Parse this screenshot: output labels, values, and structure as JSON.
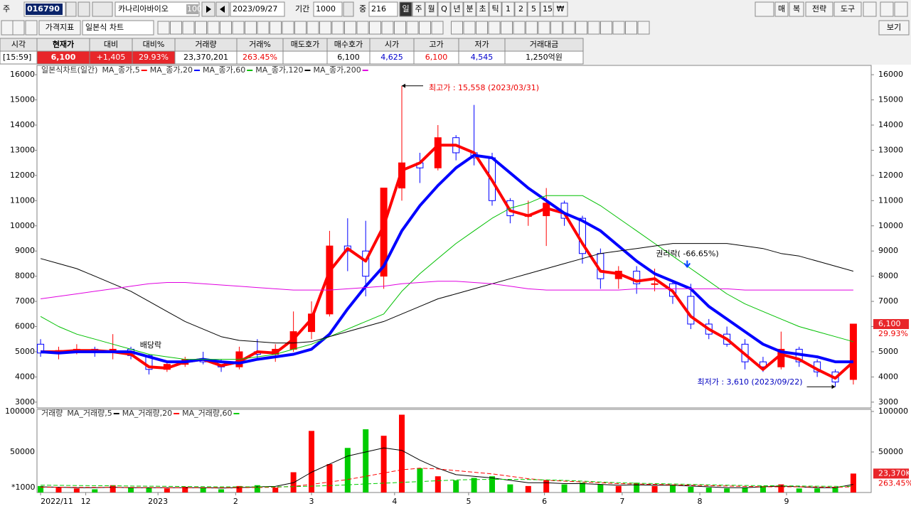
{
  "toolbar": {
    "prefix": "주",
    "code": "016790",
    "name": "카나리아바이오",
    "name_badge": "100",
    "date": "2023/09/27",
    "period_label": "기간",
    "period": "1000",
    "zoom_label": "중",
    "zoom": "216",
    "intervals": [
      "일",
      "주",
      "월",
      "Q",
      "년",
      "분",
      "초",
      "틱",
      "1",
      "2",
      "5",
      "15",
      "₩"
    ],
    "right_buttons": [
      "매",
      "복",
      "전략",
      "도구"
    ]
  },
  "toolbar2": {
    "indicator": "가격지표",
    "chart_type": "일본식 차트",
    "view": "보기"
  },
  "quote": [
    {
      "label": "시각",
      "value": "[15:59]"
    },
    {
      "label": "현재가",
      "value": "6,100"
    },
    {
      "label": "대비",
      "value": "+1,405"
    },
    {
      "label": "대비%",
      "value": "29.93%"
    },
    {
      "label": "거래량",
      "value": "23,370,201"
    },
    {
      "label": "거래%",
      "value": "263.45%"
    },
    {
      "label": "매도호가"
    },
    {
      "label": "매수호가",
      "value": "6,100"
    },
    {
      "label": "시가",
      "value": "4,625"
    },
    {
      "label": "고가",
      "value": "6,100"
    },
    {
      "label": "저가",
      "value": "4,545"
    },
    {
      "label": "거래대금",
      "value": "1,250억원"
    }
  ],
  "chart_data": [
    {
      "type": "candlestick",
      "title": "일본식차트(일간)",
      "up_color": "#ff0000",
      "down_color": "#0000ff",
      "open": [
        5300,
        4950,
        5050,
        5100,
        5000,
        5100,
        4850,
        4300,
        4500,
        4700,
        4600,
        4400,
        5000,
        4900,
        5100,
        5800,
        6500,
        9200,
        9000,
        8000,
        11500,
        12500,
        12300,
        13500,
        12900,
        12700,
        11000,
        10400,
        10400,
        10900,
        10300,
        8900,
        7900,
        8200,
        7700,
        7700,
        7200,
        6100,
        5700,
        5300,
        4600,
        4400,
        5100,
        4600,
        4200,
        3900
      ],
      "high": [
        5500,
        5200,
        5300,
        5200,
        5700,
        5200,
        4900,
        4600,
        4800,
        5000,
        4700,
        5200,
        5500,
        5300,
        6600,
        7000,
        9800,
        10300,
        10200,
        11500,
        15558,
        12900,
        14000,
        13600,
        14800,
        12900,
        11100,
        11000,
        11500,
        11000,
        10400,
        9100,
        8400,
        8400,
        8300,
        7800,
        7700,
        6300,
        6000,
        5500,
        4800,
        5800,
        5200,
        4700,
        4300,
        6100
      ],
      "low": [
        4800,
        4700,
        4900,
        4800,
        4700,
        4700,
        4100,
        4200,
        4400,
        4500,
        4200,
        4300,
        4700,
        4600,
        5000,
        5500,
        6400,
        8200,
        7200,
        7500,
        11000,
        11700,
        12200,
        12600,
        12400,
        10800,
        10100,
        10000,
        9200,
        10000,
        8500,
        7500,
        7500,
        7300,
        7400,
        6900,
        5900,
        5500,
        5200,
        4300,
        4200,
        4300,
        4400,
        4000,
        3610,
        3700
      ],
      "close": [
        4950,
        5050,
        5100,
        5000,
        5100,
        4850,
        4300,
        4500,
        4700,
        4600,
        4400,
        5000,
        4900,
        5100,
        5800,
        6500,
        9200,
        9000,
        8000,
        11500,
        12500,
        12300,
        13500,
        12900,
        12700,
        11000,
        10400,
        10400,
        10900,
        10300,
        8900,
        7900,
        8200,
        7700,
        7700,
        7200,
        6100,
        5700,
        5300,
        4600,
        4400,
        5100,
        4600,
        4200,
        3800,
        6100
      ],
      "series": [
        {
          "name": "MA_종가,5",
          "color": "#ff0000",
          "values": [
            5000,
            5000,
            5050,
            5050,
            5000,
            4900,
            4400,
            4350,
            4600,
            4700,
            4450,
            4600,
            5000,
            4950,
            5500,
            6300,
            8200,
            9100,
            8600,
            10000,
            12200,
            12500,
            13200,
            13200,
            12900,
            11800,
            10600,
            10400,
            10700,
            10500,
            9300,
            8200,
            8100,
            7800,
            7900,
            7400,
            6400,
            5900,
            5500,
            4900,
            4300,
            4900,
            4700,
            4300,
            3950,
            4600
          ]
        },
        {
          "name": "MA_종가,20",
          "color": "#0000ff",
          "values": [
            5000,
            4950,
            5000,
            5000,
            5000,
            5000,
            4800,
            4600,
            4600,
            4700,
            4600,
            4550,
            4700,
            4800,
            4900,
            5100,
            5700,
            6700,
            7600,
            8400,
            9800,
            10800,
            11600,
            12300,
            12800,
            12700,
            12100,
            11500,
            11000,
            10500,
            10200,
            9800,
            9200,
            8600,
            8100,
            7800,
            7500,
            6800,
            6300,
            5800,
            5300,
            5000,
            4900,
            4800,
            4600,
            4600
          ]
        },
        {
          "name": "MA_종가,60",
          "color": "#00c000",
          "values": [
            6400,
            6000,
            5700,
            5500,
            5300,
            5100,
            4900,
            4800,
            4700,
            4700,
            4700,
            4700,
            4800,
            4900,
            5100,
            5300,
            5600,
            5900,
            6200,
            6500,
            7400,
            8100,
            8700,
            9300,
            9800,
            10300,
            10700,
            10900,
            11200,
            11200,
            11200,
            10800,
            10300,
            9800,
            9300,
            8800,
            8300,
            7800,
            7300,
            6900,
            6600,
            6300,
            6000,
            5800,
            5600,
            5400
          ]
        },
        {
          "name": "MA_종가,120",
          "color": "#000000",
          "values": [
            8700,
            8500,
            8300,
            8000,
            7700,
            7400,
            7000,
            6600,
            6200,
            5900,
            5600,
            5450,
            5400,
            5350,
            5350,
            5400,
            5600,
            5800,
            6000,
            6200,
            6500,
            6800,
            7100,
            7300,
            7500,
            7700,
            7900,
            8100,
            8300,
            8500,
            8700,
            8900,
            9000,
            9100,
            9200,
            9300,
            9300,
            9300,
            9300,
            9200,
            9100,
            8900,
            8800,
            8600,
            8400,
            8200
          ]
        },
        {
          "name": "MA_종가,200",
          "color": "#e000e0",
          "values": [
            7100,
            7200,
            7300,
            7400,
            7500,
            7600,
            7700,
            7750,
            7750,
            7700,
            7650,
            7600,
            7550,
            7500,
            7450,
            7450,
            7450,
            7500,
            7550,
            7600,
            7700,
            7750,
            7800,
            7800,
            7750,
            7700,
            7600,
            7500,
            7450,
            7450,
            7450,
            7450,
            7450,
            7500,
            7500,
            7500,
            7500,
            7500,
            7500,
            7450,
            7450,
            7450,
            7450,
            7450,
            7450,
            7450
          ]
        }
      ],
      "xlim": [
        -0.2,
        45.2
      ],
      "xticks": [
        {
          "value": 0,
          "label": "2022/11"
        },
        {
          "value": 2.5,
          "label": "12"
        },
        {
          "value": 6.5,
          "label": "2023"
        },
        {
          "value": 10.8,
          "label": "2"
        },
        {
          "value": 15,
          "label": "3"
        },
        {
          "value": 19.6,
          "label": "4"
        },
        {
          "value": 23.7,
          "label": "5"
        },
        {
          "value": 27.9,
          "label": "6"
        },
        {
          "value": 32.2,
          "label": "7"
        },
        {
          "value": 36.5,
          "label": "8"
        },
        {
          "value": 41.3,
          "label": "9"
        }
      ],
      "ylim": [
        2770,
        16370
      ],
      "yticks": [
        3000,
        4000,
        5000,
        6000,
        7000,
        8000,
        9000,
        10000,
        11000,
        12000,
        13000,
        14000,
        15000,
        16000
      ],
      "annotations": {
        "high": "최고가 : 15,558 (2023/03/31)",
        "low": "최저가 : 3,610 (2023/09/22)",
        "rights": "권리락( -66.65%)",
        "dividend": "배당락"
      },
      "last_label": "6,100",
      "change_label": "29.93%"
    },
    {
      "type": "bar",
      "title": "거래량",
      "up_color": "#ff0000",
      "down_color": "#00cc00",
      "values": [
        8000,
        6000,
        5000,
        4000,
        9000,
        6000,
        6000,
        5000,
        7000,
        6000,
        4000,
        8000,
        9000,
        6000,
        25000,
        76000,
        35000,
        55000,
        78000,
        70000,
        96000,
        30000,
        20000,
        15000,
        18000,
        20000,
        10000,
        8000,
        15000,
        10000,
        12000,
        10000,
        8000,
        12000,
        8000,
        9000,
        7000,
        6000,
        5000,
        6000,
        8000,
        10000,
        5000,
        5000,
        6000,
        23370
      ],
      "series": [
        {
          "name": "MA_거래량,5",
          "color": "#000000",
          "values": [
            7000,
            6500,
            6000,
            6000,
            6500,
            6000,
            6000,
            6000,
            6000,
            6000,
            5500,
            6000,
            7000,
            7500,
            12000,
            25000,
            35000,
            45000,
            50000,
            55000,
            52000,
            40000,
            30000,
            22000,
            20000,
            18000,
            15000,
            12000,
            12000,
            11000,
            11000,
            10000,
            9000,
            9500,
            9000,
            9000,
            8000,
            7000,
            6000,
            6000,
            7000,
            8000,
            7000,
            6000,
            6000,
            10000
          ]
        },
        {
          "name": "MA_거래량,20",
          "color": "#ff0000",
          "values": [
            6500,
            6500,
            6400,
            6300,
            6300,
            6200,
            6100,
            6000,
            6000,
            6000,
            5900,
            6000,
            6200,
            6500,
            7500,
            10000,
            13000,
            16000,
            20000,
            24000,
            28000,
            30000,
            29000,
            27000,
            25000,
            23000,
            20000,
            17000,
            15000,
            14000,
            13000,
            12000,
            11000,
            10500,
            10000,
            9500,
            9000,
            8500,
            8000,
            7500,
            7000,
            7000,
            7000,
            6800,
            6500,
            7000
          ]
        },
        {
          "name": "MA_거래량,60",
          "color": "#00cc00",
          "values": [
            9000,
            8800,
            8600,
            8400,
            8200,
            8000,
            7800,
            7600,
            7400,
            7200,
            7000,
            7000,
            7000,
            7000,
            7200,
            7800,
            8500,
            9500,
            10500,
            11500,
            12500,
            13500,
            14500,
            15500,
            16000,
            16200,
            16200,
            16000,
            15500,
            15000,
            14000,
            13000,
            12000,
            11500,
            11000,
            10500,
            10000,
            9500,
            9000,
            8700,
            8400,
            8200,
            8000,
            7800,
            7600,
            7500
          ]
        }
      ],
      "ylim": [
        0,
        102600
      ],
      "yticks": [
        50000,
        100000
      ],
      "unit_label": "*1000",
      "last_label": "23,370K",
      "ratio_label": "263.45%"
    }
  ]
}
